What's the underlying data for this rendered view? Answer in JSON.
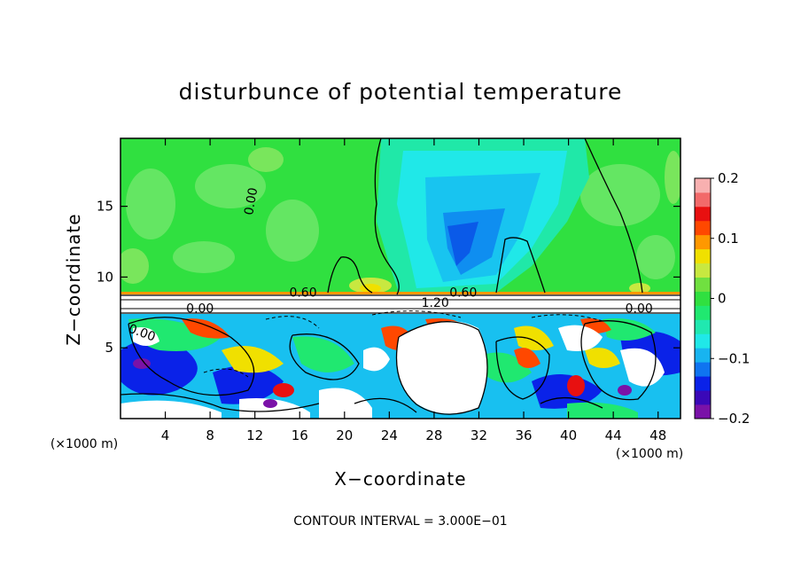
{
  "chart_data": {
    "type": "heatmap",
    "title": "disturbunce of potential temperature",
    "xlabel": "X−coordinate",
    "ylabel": "Z−coordinate",
    "x_unit_label": "(×1000 m)",
    "y_unit_label": "(×1000 m)",
    "xlim": [
      0,
      50
    ],
    "ylim": [
      0,
      19.8
    ],
    "x_ticks": [
      4,
      8,
      12,
      16,
      20,
      24,
      28,
      32,
      36,
      40,
      44,
      48
    ],
    "y_ticks": [
      5,
      10,
      15
    ],
    "colorbar": {
      "min": -0.2,
      "max": 0.2,
      "tick_values": [
        0.2,
        0.1,
        0,
        -0.1,
        -0.2
      ],
      "tick_labels": [
        "0.2",
        "0.1",
        "0",
        "−0.1",
        "−0.2"
      ],
      "colors": [
        "#7a12a8",
        "#3a08b8",
        "#0a22e8",
        "#0f74f0",
        "#18b4f0",
        "#20e8e8",
        "#20e8b0",
        "#20e870",
        "#30e040",
        "#70e040",
        "#c8e840",
        "#f0e000",
        "#ff9800",
        "#ff4800",
        "#e81010",
        "#f26a6a",
        "#f8b0b0"
      ]
    },
    "contour_labels": [
      "0.00",
      "0.60",
      "0.60",
      "0.00",
      "0.00",
      "1.20",
      "0.00"
    ],
    "contour_interval_text": "CONTOUR INTERVAL = 3.000E−01"
  }
}
